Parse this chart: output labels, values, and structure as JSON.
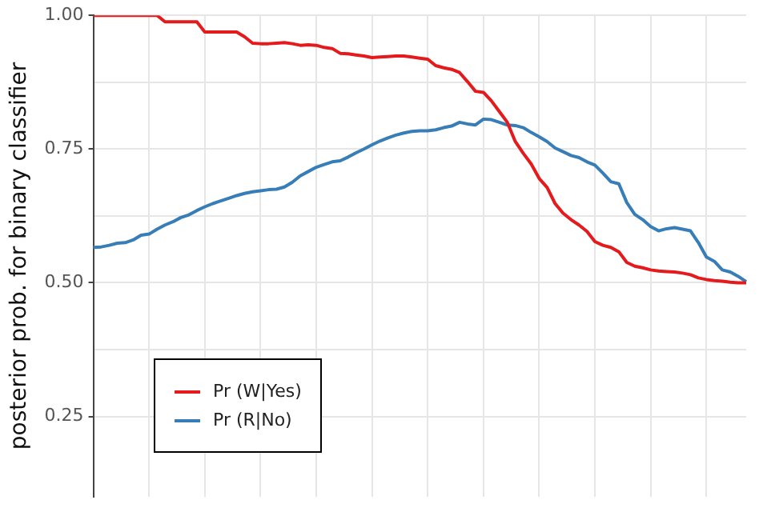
{
  "chart_data": {
    "type": "line",
    "ylabel": "posterior prob. for binary classifier",
    "categories": [
      null,
      null,
      null,
      null,
      null,
      null,
      null,
      null,
      null,
      null,
      null,
      null,
      null,
      null,
      null,
      null,
      null,
      null,
      null,
      null,
      null,
      null,
      null,
      null,
      null,
      null,
      null,
      null,
      null,
      null,
      null,
      null,
      null,
      null,
      null,
      null,
      null,
      null,
      null,
      null,
      null,
      null,
      null,
      null,
      null,
      null,
      null,
      null,
      null,
      null,
      null,
      null,
      null,
      null,
      null,
      null,
      null,
      null,
      null,
      null,
      null,
      null,
      null,
      null,
      null,
      null,
      null,
      null,
      null,
      null,
      null,
      null,
      null,
      null,
      null,
      null,
      null,
      null,
      null,
      null,
      null,
      null,
      null
    ],
    "series": [
      {
        "name": "Pr (W|Yes)",
        "color": "#e41a1c",
        "values": [
          1.0,
          1.0,
          1.0,
          1.0,
          1.0,
          1.0,
          1.0,
          1.0,
          1.0,
          0.988,
          0.988,
          0.988,
          0.988,
          0.988,
          0.969,
          0.969,
          0.969,
          0.969,
          0.969,
          0.96,
          0.948,
          0.947,
          0.947,
          0.948,
          0.949,
          0.947,
          0.944,
          0.945,
          0.944,
          0.94,
          0.938,
          0.929,
          0.928,
          0.926,
          0.924,
          0.921,
          0.922,
          0.923,
          0.924,
          0.924,
          0.922,
          0.92,
          0.918,
          0.906,
          0.902,
          0.899,
          0.893,
          0.876,
          0.858,
          0.856,
          0.84,
          0.82,
          0.8,
          0.764,
          0.742,
          0.722,
          0.695,
          0.678,
          0.648,
          0.63,
          0.618,
          0.608,
          0.596,
          0.577,
          0.57,
          0.566,
          0.558,
          0.538,
          0.531,
          0.528,
          0.524,
          0.522,
          0.521,
          0.52,
          0.518,
          0.515,
          0.509,
          0.506,
          0.504,
          0.503,
          0.501,
          0.5,
          0.5
        ]
      },
      {
        "name": "Pr (R|No)",
        "color": "#377eb8",
        "values": [
          0.566,
          0.567,
          0.57,
          0.574,
          0.575,
          0.58,
          0.589,
          0.591,
          0.6,
          0.608,
          0.614,
          0.622,
          0.627,
          0.635,
          0.642,
          0.648,
          0.653,
          0.658,
          0.663,
          0.667,
          0.67,
          0.672,
          0.674,
          0.675,
          0.679,
          0.688,
          0.7,
          0.708,
          0.716,
          0.721,
          0.726,
          0.728,
          0.735,
          0.743,
          0.75,
          0.758,
          0.765,
          0.771,
          0.776,
          0.78,
          0.783,
          0.784,
          0.784,
          0.786,
          0.79,
          0.793,
          0.8,
          0.797,
          0.795,
          0.806,
          0.805,
          0.8,
          0.795,
          0.794,
          0.79,
          0.781,
          0.773,
          0.764,
          0.752,
          0.745,
          0.738,
          0.734,
          0.726,
          0.72,
          0.705,
          0.689,
          0.685,
          0.65,
          0.628,
          0.618,
          0.605,
          0.597,
          0.601,
          0.603,
          0.6,
          0.597,
          0.575,
          0.548,
          0.54,
          0.524,
          0.52,
          0.512,
          0.502
        ]
      }
    ],
    "ylim": [
      0.1,
      1.0
    ],
    "yticks": [
      {
        "value": 0.25,
        "label": "0.25"
      },
      {
        "value": 0.375,
        "label": null
      },
      {
        "value": 0.5,
        "label": "0.50"
      },
      {
        "value": 0.625,
        "label": null
      },
      {
        "value": 0.75,
        "label": "0.75"
      },
      {
        "value": 0.875,
        "label": null
      },
      {
        "value": 1.0,
        "label": "1.00"
      }
    ],
    "grid": true,
    "legend": "bottom left",
    "tick_labels": "y",
    "marker": "none",
    "line_style": "solid"
  }
}
